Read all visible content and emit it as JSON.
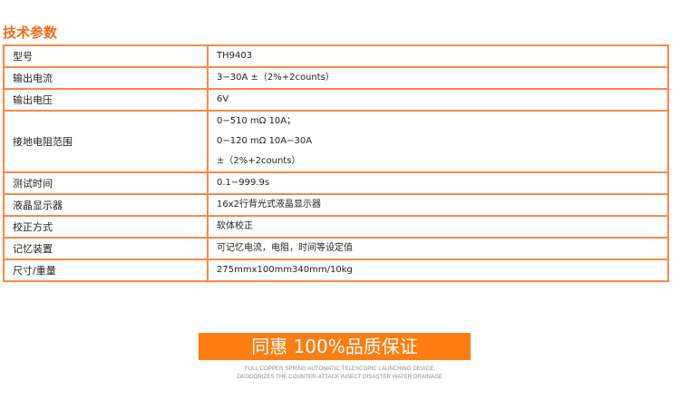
{
  "title": "技术参数",
  "rows": [
    {
      "label": "型号",
      "values": [
        "TH9403"
      ]
    },
    {
      "label": "输出电流",
      "values": [
        "3−30A ±（2%+2counts）"
      ]
    },
    {
      "label": "输出电压",
      "values": [
        "6V"
      ]
    },
    {
      "label": "接地电阻范围",
      "values": [
        "0−510 mΩ 10A；",
        "0−120 mΩ 10A−30A",
        "±（2%+2counts）"
      ]
    },
    {
      "label": "测试时间",
      "values": [
        "0.1−999.9s"
      ]
    },
    {
      "label": "液晶显示器",
      "values": [
        "16x2行背光式液晶显示器"
      ]
    },
    {
      "label": "校正方式",
      "values": [
        "软体校正"
      ]
    },
    {
      "label": "记忆装置",
      "values": [
        "可记忆电流，电阻，时间等设定值"
      ]
    },
    {
      "label": "尺寸/重量",
      "values": [
        "275mmx100mm340mm/10kg"
      ]
    }
  ],
  "banner": {
    "text": "同惠 100%品质保证",
    "line1": "FULL COPPER SPRING AUTOMATIC TELESCOPIC LAUNCHING DEVICE,",
    "line2": "DEODORIZES THE COUNTER-ATTACK INSECT DISASTER WATER DRAINAGE"
  }
}
